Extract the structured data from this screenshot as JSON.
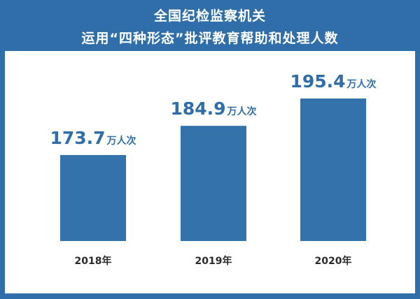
{
  "chart_data": {
    "type": "bar",
    "title": [
      "全国纪检监察机关",
      "运用“四种形态”批评教育帮助和处理人数"
    ],
    "categories": [
      "2018年",
      "2019年",
      "2020年"
    ],
    "values": [
      173.7,
      184.9,
      195.4
    ],
    "value_unit": "万人次",
    "xlabel": "",
    "ylabel": "",
    "grid": false,
    "colors": {
      "bar": "#3472ab",
      "background": "#2f6ea8",
      "value_label": "#2f6ea8",
      "category_label": "#2a2a2a"
    }
  }
}
